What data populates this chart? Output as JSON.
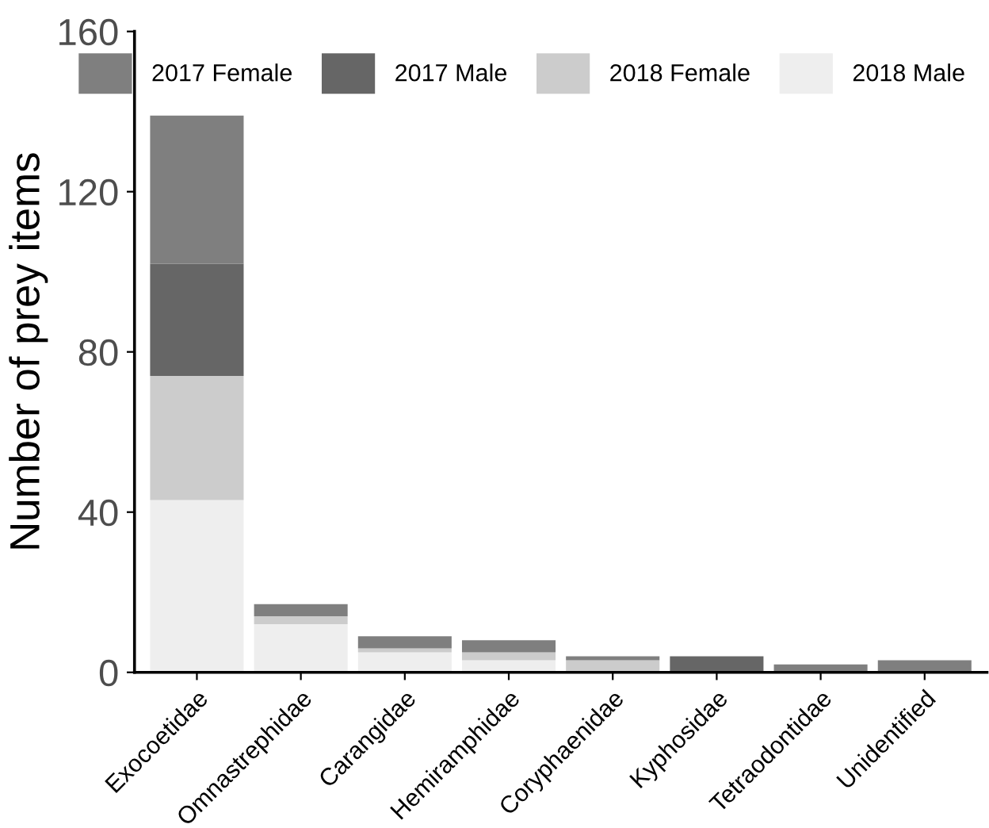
{
  "chart_data": {
    "type": "bar",
    "stacked": true,
    "ylabel": "Number of prey items",
    "categories": [
      "Exocoetidae",
      "Omnastrephidae",
      "Carangidae",
      "Hemiramphidae",
      "Coryphaenidae",
      "Kyphosidae",
      "Tetraodontidae",
      "Unidentified"
    ],
    "series": [
      {
        "name": "2018 Male",
        "color": "#eeeeee",
        "values": [
          43,
          12,
          5,
          3,
          0,
          0,
          0,
          0
        ]
      },
      {
        "name": "2018 Female",
        "color": "#cccccc",
        "values": [
          31,
          2,
          1,
          2,
          3,
          0,
          0,
          0
        ]
      },
      {
        "name": "2017 Male",
        "color": "#666666",
        "values": [
          28,
          0,
          0,
          0,
          0,
          4,
          0,
          0
        ]
      },
      {
        "name": "2017 Female",
        "color": "#7f7f7f",
        "values": [
          37,
          3,
          3,
          3,
          1,
          0,
          2,
          3
        ]
      }
    ],
    "ylim": [
      0,
      160
    ],
    "yticks": [
      0,
      40,
      80,
      120,
      160
    ],
    "grid": false,
    "legend": "top right"
  }
}
